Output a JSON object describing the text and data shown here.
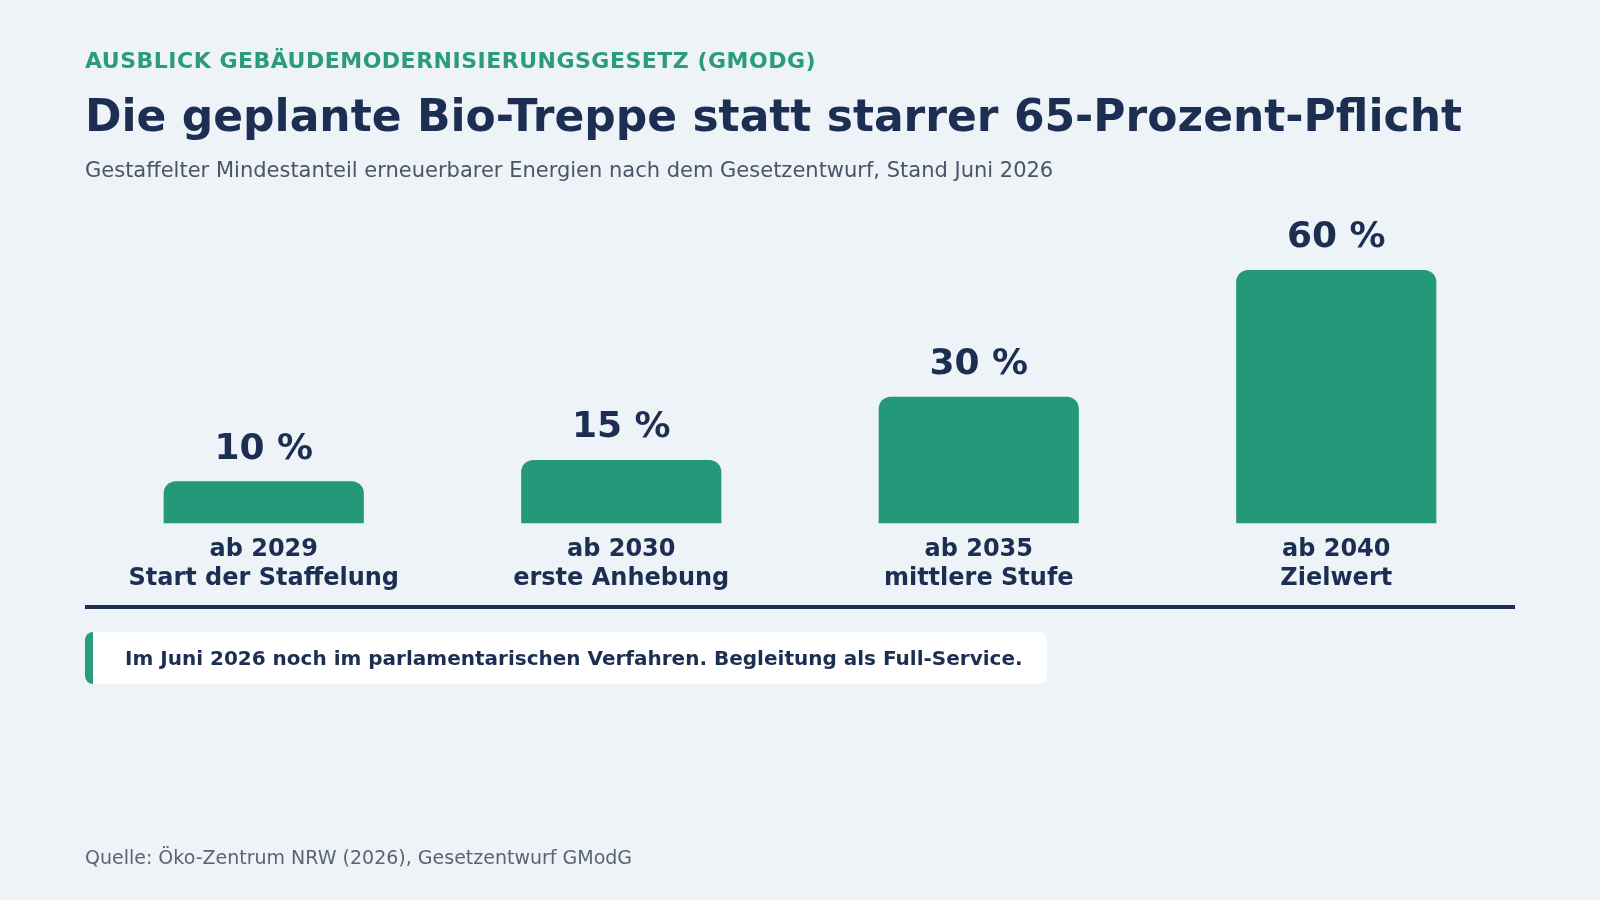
{
  "chart_data": {
    "type": "bar",
    "title": "Die geplante Bio-Treppe statt starrer 65-Prozent-Pflicht",
    "subtitle": "Gestaffelter Mindestanteil erneuerbarer Energien nach dem Gesetzentwurf, Stand Juni 2026",
    "categories": [
      "ab 2029\nStart der Staffelung",
      "ab 2030\nerste Anhebung",
      "ab 2035\nmittlere Stufe",
      "ab 2040\nZielwert"
    ],
    "values": [
      10,
      15,
      30,
      60
    ],
    "color": "#24997a",
    "value_labels": [
      "10 %",
      "15 %",
      "30 %",
      "60 %"
    ],
    "annotations": [
      "AUSBLICK GEBÄUDEMODERNISIERUNGSGESETZ (GMODG)",
      "Im Juni 2026 noch im parlamentarischen Verfahren. Begleitung als Full-Service.",
      "Quelle: Öko-Zentrum NRW (2026), Gesetzentwurf GModG"
    ],
    "grid": false,
    "legend": false
  }
}
